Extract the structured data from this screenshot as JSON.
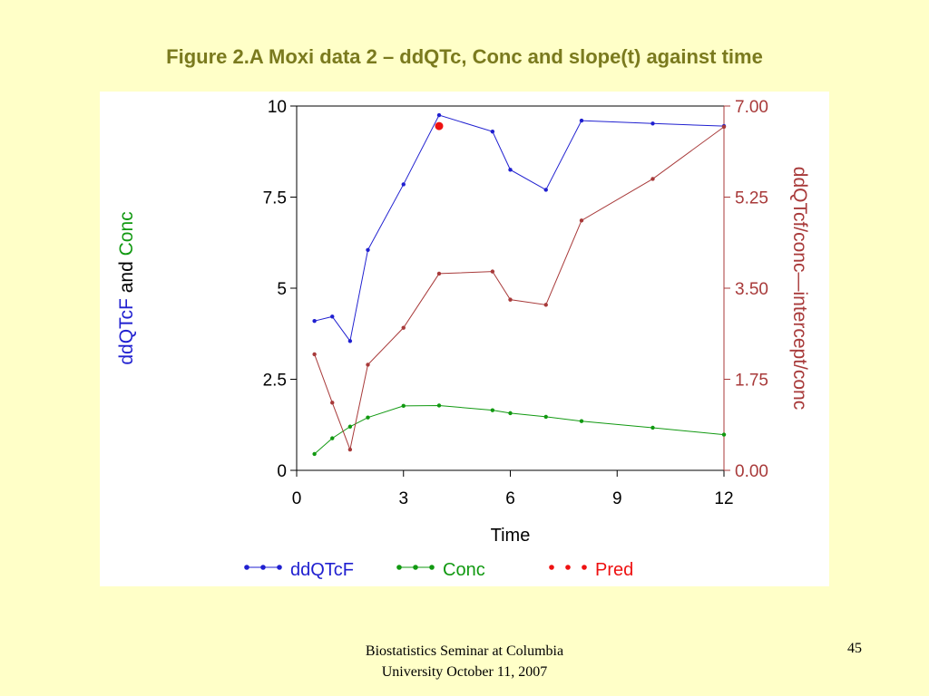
{
  "slide": {
    "title": "Figure 2.A Moxi data 2 – ddQTc, Conc and slope(t) against time",
    "footer_line1": "Biostatistics Seminar at Columbia",
    "footer_line2": "University October 11, 2007",
    "page_number": "45"
  },
  "chart_data": {
    "type": "line",
    "xlabel": "Time",
    "ylabel_left_parts": [
      {
        "text": "ddQTcF",
        "color": "#2020d0"
      },
      {
        "text": " and ",
        "color": "#000000"
      },
      {
        "text": "Conc",
        "color": "#119911"
      }
    ],
    "ylabel_right": "ddQTcf/conc—intercept/conc",
    "xlim": [
      0,
      12
    ],
    "x_ticks": [
      0,
      3,
      6,
      9,
      12
    ],
    "x_tick_labels": [
      "0",
      "3",
      "6",
      "9",
      "12"
    ],
    "ylim_left": [
      0,
      10
    ],
    "y_left_ticks": [
      0,
      2.5,
      5,
      7.5,
      10
    ],
    "y_left_tick_labels": [
      "0",
      "2.5",
      "5",
      "7.5",
      "10"
    ],
    "ylim_right": [
      0,
      7
    ],
    "y_right_ticks": [
      0,
      1.75,
      3.5,
      5.25,
      7
    ],
    "y_right_tick_labels": [
      "0.00",
      "1.75",
      "3.50",
      "5.25",
      "7.00"
    ],
    "axis_colors": {
      "left": "#000000",
      "right": "#a83a3a"
    },
    "grid": false,
    "legend_position": "bottom",
    "series": [
      {
        "name": "ddQTcF",
        "axis": "left",
        "color": "#2020d0",
        "line": true,
        "x": [
          0.5,
          1,
          1.5,
          2,
          3,
          4,
          5.5,
          6,
          7,
          8,
          10,
          12
        ],
        "y": [
          4.1,
          4.22,
          3.55,
          6.05,
          7.85,
          9.75,
          9.3,
          8.25,
          7.7,
          9.6,
          9.52,
          9.45
        ]
      },
      {
        "name": "Conc",
        "axis": "left",
        "color": "#119911",
        "line": true,
        "x": [
          0.5,
          1,
          1.5,
          2,
          3,
          4,
          5.5,
          6,
          7,
          8,
          10,
          12
        ],
        "y": [
          0.45,
          0.88,
          1.2,
          1.45,
          1.77,
          1.78,
          1.65,
          1.57,
          1.47,
          1.35,
          1.17,
          0.98
        ]
      },
      {
        "name": "",
        "axis": "right",
        "color": "#a83a3a",
        "line": true,
        "legend": false,
        "x": [
          0.5,
          1,
          1.5,
          2,
          3,
          4,
          5.5,
          6,
          7,
          8,
          10,
          12
        ],
        "y": [
          2.23,
          1.3,
          0.4,
          2.03,
          2.74,
          3.78,
          3.82,
          3.28,
          3.18,
          4.8,
          5.6,
          6.6
        ]
      },
      {
        "name": "Pred",
        "axis": "left",
        "color": "#ee1111",
        "line": false,
        "big": true,
        "x": [
          4
        ],
        "y": [
          9.45
        ]
      }
    ]
  }
}
